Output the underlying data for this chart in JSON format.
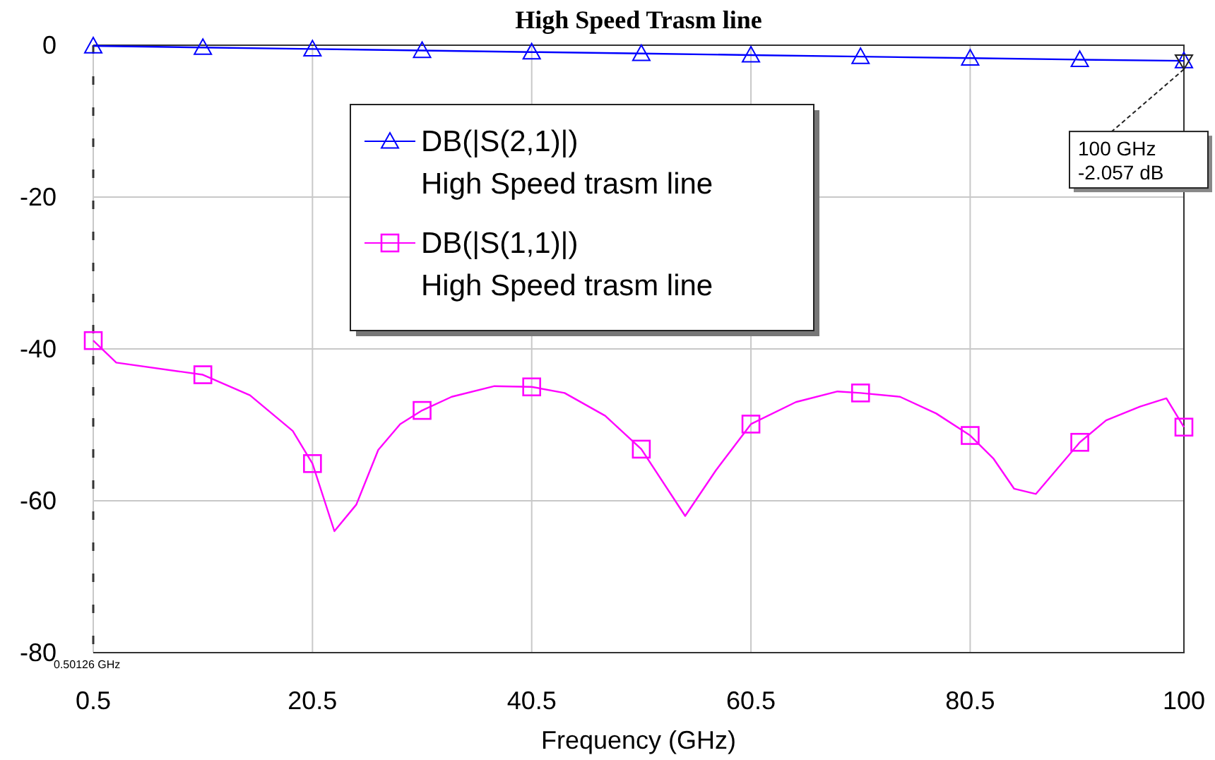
{
  "chart_data": {
    "type": "line",
    "title": "High Speed Trasm line",
    "xlabel": "Frequency (GHz)",
    "xlim": [
      0.5,
      100
    ],
    "xticks": [
      0.5,
      20.5,
      40.5,
      60.5,
      80.5,
      100
    ],
    "ylim": [
      -80,
      0
    ],
    "yticks": [
      0,
      -20,
      -40,
      -60,
      -80
    ],
    "grid": true,
    "legend": "top",
    "series": [
      {
        "name": "DB(|S(2,1)|)\nHigh Speed trasm line",
        "color": "#0000ff",
        "marker": "triangle",
        "x": [
          0.5,
          10.5,
          20.5,
          30.5,
          40.5,
          50.5,
          60.5,
          70.5,
          80.5,
          90.5,
          100
        ],
        "values": [
          -0.1,
          -0.3,
          -0.5,
          -0.7,
          -0.9,
          -1.1,
          -1.3,
          -1.5,
          -1.7,
          -1.9,
          -2.057
        ]
      },
      {
        "color": "#ff00ff",
        "marker": "none",
        "x": [
          0.5,
          2.6,
          10.5,
          14.8,
          18.7,
          20.5,
          22.5,
          24.5,
          26.5,
          28.5,
          30.5,
          33.2,
          37.1,
          40.5,
          43.5,
          47.2,
          50.5,
          54.5,
          57.3,
          60.5,
          64.6,
          68.4,
          70.5,
          74.1,
          77.4,
          80.5,
          82.6,
          84.5,
          86.5,
          90.5,
          92.9,
          96.0,
          98.4,
          100
        ],
        "values": [
          -38.9,
          -41.8,
          -43.4,
          -46.1,
          -50.8,
          -55.1,
          -64.0,
          -60.5,
          -53.3,
          -49.9,
          -48.1,
          -46.3,
          -44.9,
          -45.0,
          -45.8,
          -48.8,
          -53.2,
          -62.0,
          -56.0,
          -49.9,
          -47.0,
          -45.6,
          -45.8,
          -46.3,
          -48.5,
          -51.4,
          -54.4,
          -58.4,
          -59.1,
          -52.3,
          -49.4,
          -47.6,
          -46.5,
          -50.3
        ]
      },
      {
        "name": "DB(|S(1,1)|)\nHigh Speed trasm line",
        "type": "scatter",
        "color": "#ff00ff",
        "marker": "square",
        "x": [
          0.5,
          10.5,
          20.5,
          30.5,
          40.5,
          50.5,
          60.5,
          70.5,
          80.5,
          90.5,
          100
        ],
        "values": [
          -38.9,
          -43.4,
          -55.1,
          -48.1,
          -45.0,
          -53.2,
          -49.9,
          -45.8,
          -51.4,
          -52.3,
          -50.3
        ]
      }
    ],
    "annotations": [
      {
        "text": "100 GHz\n-2.057 dB",
        "x": 100,
        "y": -2.057
      },
      "0.50126 GHz"
    ]
  }
}
